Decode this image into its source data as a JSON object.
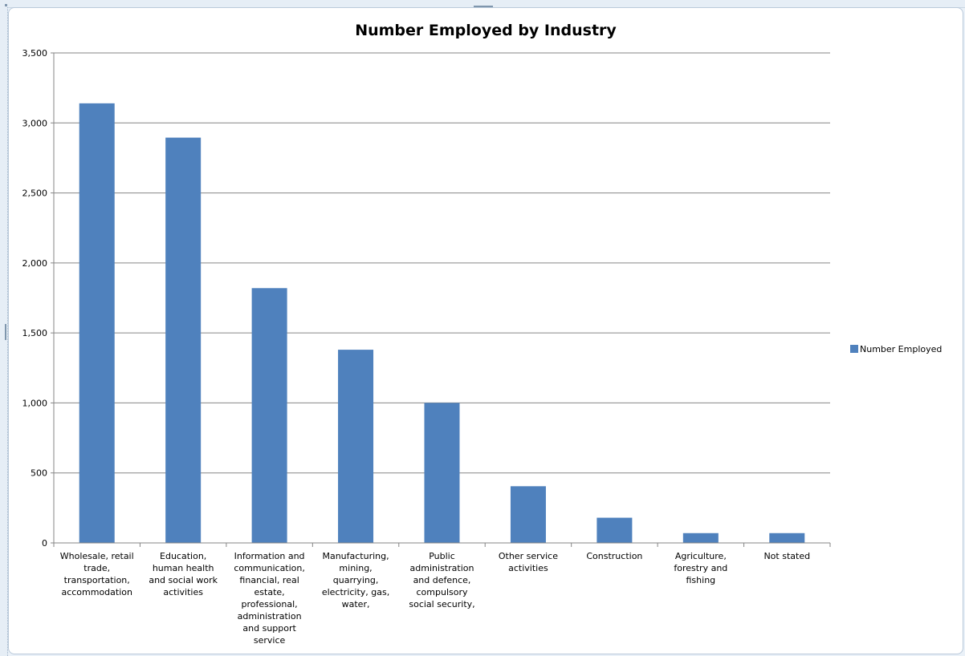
{
  "chart_data": {
    "type": "bar",
    "title": "Number Employed by Industry",
    "xlabel": "",
    "ylabel": "",
    "ylim": [
      0,
      3500
    ],
    "yticks": [
      0,
      500,
      1000,
      1500,
      2000,
      2500,
      3000,
      3500
    ],
    "ytick_labels": [
      "0",
      "500",
      "1,000",
      "1,500",
      "2,000",
      "2,500",
      "3,000",
      "3,500"
    ],
    "grid": true,
    "legend_position": "right",
    "categories": [
      "Wholesale, retail trade, transportation, accommodation",
      "Education, human health and social work activities",
      "Information and communication, financial, real estate, professional, administration and support service",
      "Manufacturing, mining, quarrying, electricity, gas, water,",
      "Public administration and defence, compulsory social security,",
      "Other service activities",
      "Construction",
      "Agriculture, forestry and fishing",
      "Not stated"
    ],
    "category_label_lines": [
      [
        "Wholesale, retail",
        "trade,",
        "transportation,",
        "accommodation"
      ],
      [
        "Education,",
        "human health",
        "and social work",
        "activities"
      ],
      [
        "Information and",
        "communication,",
        "financial, real",
        "estate,",
        "professional,",
        "administration",
        "and support",
        "service"
      ],
      [
        "Manufacturing,",
        "mining,",
        "quarrying,",
        "electricity, gas,",
        "water,"
      ],
      [
        "Public",
        "administration",
        "and defence,",
        "compulsory",
        "social security,"
      ],
      [
        "Other service",
        "activities"
      ],
      [
        "Construction"
      ],
      [
        "Agriculture,",
        "forestry and",
        "fishing"
      ],
      [
        "Not stated"
      ]
    ],
    "series": [
      {
        "name": "Number Employed",
        "color": "#4f81bd",
        "values": [
          3140,
          2895,
          1820,
          1380,
          1000,
          405,
          180,
          70,
          70
        ]
      }
    ]
  }
}
